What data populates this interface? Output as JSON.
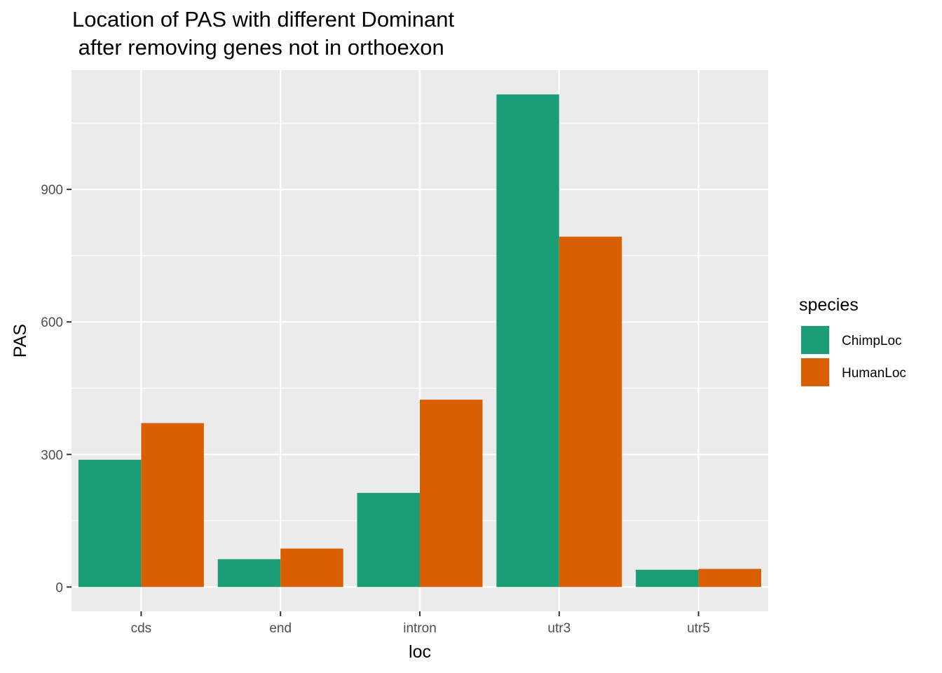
{
  "chart_data": {
    "type": "bar",
    "title_lines": [
      "Location of PAS with different Dominant",
      " after removing genes not in orthoexon"
    ],
    "xlabel": "loc",
    "ylabel": "PAS",
    "categories": [
      "cds",
      "end",
      "intron",
      "utr3",
      "utr5"
    ],
    "series": [
      {
        "name": "ChimpLoc",
        "color": "#1b9e77",
        "values": [
          288,
          63,
          213,
          1115,
          39
        ]
      },
      {
        "name": "HumanLoc",
        "color": "#d95f02",
        "values": [
          371,
          87,
          424,
          793,
          41
        ]
      }
    ],
    "ylim": [
      -55,
      1170
    ],
    "yticks": [
      0,
      300,
      600,
      900
    ],
    "grid": true,
    "legend": {
      "title": "species",
      "position": "right"
    },
    "panel_background": "#ebebeb"
  }
}
